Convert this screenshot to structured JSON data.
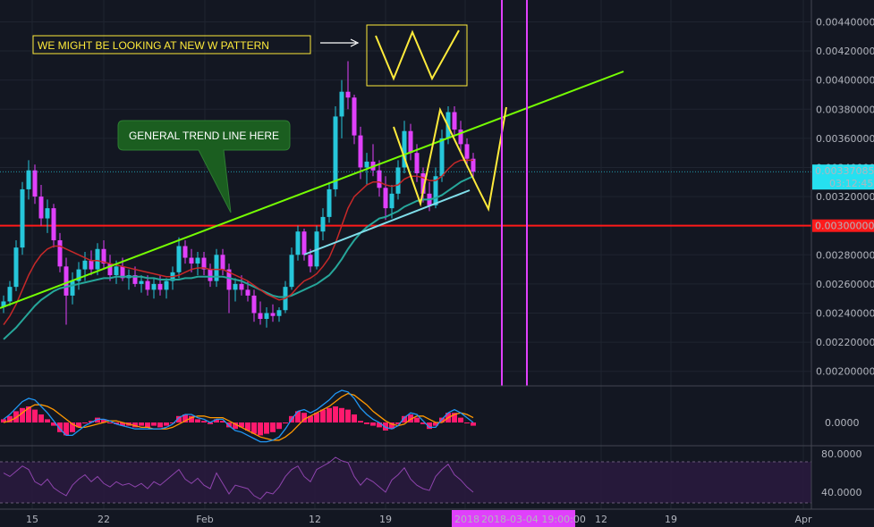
{
  "chart_data": {
    "type": "candlestick",
    "main": {
      "ylim": [
        0.0019,
        0.00455
      ],
      "yticks": [
        "0.00200000",
        "0.00220000",
        "0.00240000",
        "0.00260000",
        "0.00280000",
        "0.00300000",
        "0.00320000",
        "0.00340000",
        "0.00360000",
        "0.00380000",
        "0.00400000",
        "0.00420000",
        "0.00440000"
      ],
      "last_price": "0.00337085",
      "countdown": "03:12:45",
      "support_level": "0.00300000",
      "candles": [
        [
          0.00244,
          0.00252,
          0.0024,
          0.00248
        ],
        [
          0.00248,
          0.00262,
          0.00245,
          0.00258
        ],
        [
          0.00258,
          0.0029,
          0.00255,
          0.00285
        ],
        [
          0.00285,
          0.0033,
          0.0028,
          0.00325
        ],
        [
          0.00325,
          0.00345,
          0.00318,
          0.00338
        ],
        [
          0.00338,
          0.00342,
          0.00315,
          0.0032
        ],
        [
          0.0032,
          0.00328,
          0.003,
          0.00305
        ],
        [
          0.00305,
          0.00318,
          0.00295,
          0.00312
        ],
        [
          0.00312,
          0.00315,
          0.00285,
          0.0029
        ],
        [
          0.0029,
          0.00295,
          0.00268,
          0.00272
        ],
        [
          0.00272,
          0.00278,
          0.00232,
          0.00252
        ],
        [
          0.00252,
          0.00268,
          0.00246,
          0.00262
        ],
        [
          0.00262,
          0.00275,
          0.00256,
          0.0027
        ],
        [
          0.0027,
          0.00282,
          0.00262,
          0.00276
        ],
        [
          0.00276,
          0.00283,
          0.00266,
          0.0027
        ],
        [
          0.0027,
          0.00288,
          0.00266,
          0.00284
        ],
        [
          0.00284,
          0.0029,
          0.0027,
          0.00274
        ],
        [
          0.00274,
          0.0028,
          0.00262,
          0.00266
        ],
        [
          0.00266,
          0.00276,
          0.0026,
          0.00272
        ],
        [
          0.00272,
          0.00278,
          0.00262,
          0.00264
        ],
        [
          0.00264,
          0.0027,
          0.00256,
          0.00266
        ],
        [
          0.00266,
          0.00272,
          0.00258,
          0.0026
        ],
        [
          0.0026,
          0.00266,
          0.00254,
          0.00262
        ],
        [
          0.00262,
          0.00266,
          0.00252,
          0.00256
        ],
        [
          0.00256,
          0.00264,
          0.0025,
          0.0026
        ],
        [
          0.0026,
          0.00266,
          0.00252,
          0.00256
        ],
        [
          0.00256,
          0.00264,
          0.0025,
          0.00262
        ],
        [
          0.00262,
          0.00272,
          0.00256,
          0.00268
        ],
        [
          0.00268,
          0.00292,
          0.00264,
          0.00286
        ],
        [
          0.00286,
          0.0029,
          0.00274,
          0.00278
        ],
        [
          0.00278,
          0.00284,
          0.00268,
          0.00274
        ],
        [
          0.00274,
          0.00282,
          0.00266,
          0.00278
        ],
        [
          0.00278,
          0.00282,
          0.00266,
          0.0027
        ],
        [
          0.0027,
          0.00274,
          0.00258,
          0.00262
        ],
        [
          0.00262,
          0.00284,
          0.00258,
          0.0028
        ],
        [
          0.0028,
          0.00284,
          0.00266,
          0.0027
        ],
        [
          0.0027,
          0.00274,
          0.0024,
          0.00256
        ],
        [
          0.00256,
          0.00264,
          0.00248,
          0.0026
        ],
        [
          0.0026,
          0.00266,
          0.00252,
          0.00256
        ],
        [
          0.00256,
          0.00262,
          0.00248,
          0.00252
        ],
        [
          0.00252,
          0.00256,
          0.00234,
          0.0024
        ],
        [
          0.0024,
          0.00248,
          0.00232,
          0.00236
        ],
        [
          0.00236,
          0.00244,
          0.0023,
          0.0024
        ],
        [
          0.0024,
          0.00246,
          0.00234,
          0.00238
        ],
        [
          0.00238,
          0.00244,
          0.00234,
          0.00242
        ],
        [
          0.00242,
          0.00262,
          0.0024,
          0.00258
        ],
        [
          0.00258,
          0.00285,
          0.00256,
          0.0028
        ],
        [
          0.0028,
          0.003,
          0.00276,
          0.00296
        ],
        [
          0.00296,
          0.00298,
          0.00276,
          0.0028
        ],
        [
          0.0028,
          0.00284,
          0.00268,
          0.00272
        ],
        [
          0.00272,
          0.003,
          0.0027,
          0.00296
        ],
        [
          0.00296,
          0.00312,
          0.0029,
          0.00306
        ],
        [
          0.00306,
          0.0033,
          0.00302,
          0.00325
        ],
        [
          0.00325,
          0.00382,
          0.0032,
          0.00375
        ],
        [
          0.00375,
          0.004,
          0.0036,
          0.00392
        ],
        [
          0.00392,
          0.00413,
          0.0038,
          0.00388
        ],
        [
          0.00388,
          0.0039,
          0.00356,
          0.00362
        ],
        [
          0.00362,
          0.00368,
          0.00332,
          0.0034
        ],
        [
          0.0034,
          0.0035,
          0.00328,
          0.00344
        ],
        [
          0.00344,
          0.00356,
          0.00334,
          0.00338
        ],
        [
          0.00338,
          0.00345,
          0.0032,
          0.00326
        ],
        [
          0.00326,
          0.00334,
          0.00304,
          0.00312
        ],
        [
          0.00312,
          0.00328,
          0.00305,
          0.00322
        ],
        [
          0.00322,
          0.00345,
          0.00318,
          0.0034
        ],
        [
          0.0034,
          0.00372,
          0.00336,
          0.00365
        ],
        [
          0.00365,
          0.0037,
          0.00345,
          0.0035
        ],
        [
          0.0035,
          0.00356,
          0.0033,
          0.00336
        ],
        [
          0.00336,
          0.0034,
          0.00316,
          0.00322
        ],
        [
          0.00322,
          0.0033,
          0.0031,
          0.00314
        ],
        [
          0.00314,
          0.0034,
          0.00312,
          0.00334
        ],
        [
          0.00334,
          0.00366,
          0.0033,
          0.0036
        ],
        [
          0.0036,
          0.00382,
          0.00356,
          0.00378
        ],
        [
          0.00378,
          0.00382,
          0.00362,
          0.00366
        ],
        [
          0.00366,
          0.00372,
          0.0035,
          0.00356
        ],
        [
          0.00356,
          0.0036,
          0.0034,
          0.00346
        ],
        [
          0.00346,
          0.0035,
          0.00332,
          0.00337
        ]
      ],
      "ma_fast": [
        0.00232,
        0.00238,
        0.00246,
        0.00256,
        0.00266,
        0.00274,
        0.0028,
        0.00284,
        0.00286,
        0.00286,
        0.00284,
        0.00282,
        0.0028,
        0.00278,
        0.00276,
        0.00276,
        0.00275,
        0.00274,
        0.00273,
        0.00272,
        0.00271,
        0.0027,
        0.00269,
        0.00268,
        0.00267,
        0.00266,
        0.00265,
        0.00265,
        0.00266,
        0.00268,
        0.0027,
        0.00271,
        0.00271,
        0.0027,
        0.0027,
        0.0027,
        0.00268,
        0.00266,
        0.00264,
        0.00262,
        0.00259,
        0.00256,
        0.00253,
        0.00251,
        0.00249,
        0.0025,
        0.00253,
        0.00258,
        0.00262,
        0.00264,
        0.00267,
        0.00272,
        0.00278,
        0.00288,
        0.003,
        0.00312,
        0.0032,
        0.00324,
        0.00328,
        0.0033,
        0.0033,
        0.00328,
        0.00327,
        0.00328,
        0.00332,
        0.00334,
        0.00334,
        0.00333,
        0.00331,
        0.00331,
        0.00334,
        0.00339,
        0.00343,
        0.00345,
        0.00345,
        0.00345
      ],
      "ma_slow": [
        0.00222,
        0.00226,
        0.0023,
        0.00235,
        0.0024,
        0.00245,
        0.00249,
        0.00252,
        0.00255,
        0.00257,
        0.00258,
        0.00259,
        0.0026,
        0.00261,
        0.00262,
        0.00263,
        0.00264,
        0.00264,
        0.00265,
        0.00265,
        0.00265,
        0.00265,
        0.00265,
        0.00264,
        0.00264,
        0.00263,
        0.00263,
        0.00263,
        0.00263,
        0.00264,
        0.00264,
        0.00265,
        0.00265,
        0.00265,
        0.00265,
        0.00265,
        0.00264,
        0.00263,
        0.00262,
        0.0026,
        0.00258,
        0.00256,
        0.00254,
        0.00252,
        0.00251,
        0.00251,
        0.00252,
        0.00254,
        0.00256,
        0.00258,
        0.0026,
        0.00263,
        0.00266,
        0.00271,
        0.00277,
        0.00284,
        0.0029,
        0.00295,
        0.00299,
        0.00302,
        0.00305,
        0.00306,
        0.00308,
        0.0031,
        0.00313,
        0.00315,
        0.00317,
        0.00318,
        0.00318,
        0.00319,
        0.00321,
        0.00324,
        0.00327,
        0.0033,
        0.00332,
        0.00334
      ]
    },
    "macd": {
      "tick": "0.0000",
      "hist": [
        0.2,
        0.4,
        0.7,
        0.9,
        1.0,
        0.8,
        0.5,
        0.2,
        -0.2,
        -0.6,
        -0.8,
        -0.6,
        -0.3,
        0.0,
        0.1,
        0.3,
        0.2,
        0.0,
        -0.1,
        -0.2,
        -0.2,
        -0.3,
        -0.2,
        -0.3,
        -0.2,
        -0.3,
        -0.2,
        0.0,
        0.4,
        0.5,
        0.4,
        0.2,
        0.1,
        -0.1,
        0.2,
        0.1,
        -0.3,
        -0.4,
        -0.3,
        -0.5,
        -0.7,
        -0.8,
        -0.7,
        -0.6,
        -0.4,
        0.0,
        0.4,
        0.7,
        0.6,
        0.4,
        0.6,
        0.8,
        0.9,
        1.0,
        0.9,
        0.8,
        0.5,
        0.1,
        -0.1,
        -0.2,
        -0.3,
        -0.5,
        -0.4,
        -0.1,
        0.4,
        0.5,
        0.3,
        -0.1,
        -0.4,
        -0.2,
        0.3,
        0.6,
        0.6,
        0.3,
        0.0,
        -0.2
      ],
      "macd_line": [
        0.2,
        0.5,
        0.9,
        1.3,
        1.5,
        1.4,
        1.0,
        0.6,
        0.1,
        -0.4,
        -0.8,
        -0.8,
        -0.5,
        -0.2,
        0.0,
        0.2,
        0.2,
        0.1,
        -0.1,
        -0.2,
        -0.3,
        -0.4,
        -0.4,
        -0.4,
        -0.4,
        -0.4,
        -0.3,
        -0.1,
        0.3,
        0.5,
        0.5,
        0.3,
        0.2,
        0.0,
        0.2,
        0.2,
        -0.2,
        -0.5,
        -0.6,
        -0.8,
        -1.0,
        -1.2,
        -1.2,
        -1.1,
        -0.9,
        -0.4,
        0.2,
        0.7,
        0.8,
        0.6,
        0.8,
        1.1,
        1.4,
        1.8,
        2.0,
        1.9,
        1.5,
        0.9,
        0.5,
        0.2,
        0.0,
        -0.3,
        -0.4,
        -0.2,
        0.3,
        0.6,
        0.5,
        0.1,
        -0.3,
        -0.3,
        0.2,
        0.6,
        0.8,
        0.6,
        0.3,
        0.0
      ],
      "signal_line": [
        0.0,
        0.1,
        0.3,
        0.6,
        0.9,
        1.1,
        1.1,
        1.0,
        0.8,
        0.5,
        0.2,
        -0.1,
        -0.3,
        -0.3,
        -0.2,
        -0.1,
        0.0,
        0.1,
        0.1,
        0.0,
        -0.1,
        -0.2,
        -0.3,
        -0.3,
        -0.4,
        -0.4,
        -0.4,
        -0.3,
        -0.1,
        0.1,
        0.3,
        0.4,
        0.4,
        0.3,
        0.3,
        0.3,
        0.1,
        -0.1,
        -0.3,
        -0.5,
        -0.7,
        -0.9,
        -1.0,
        -1.1,
        -1.1,
        -0.9,
        -0.6,
        -0.2,
        0.2,
        0.4,
        0.6,
        0.8,
        1.0,
        1.3,
        1.6,
        1.8,
        1.7,
        1.4,
        1.1,
        0.7,
        0.4,
        0.1,
        -0.1,
        -0.2,
        -0.1,
        0.2,
        0.4,
        0.4,
        0.2,
        0.0,
        0.0,
        0.3,
        0.5,
        0.6,
        0.5,
        0.3
      ]
    },
    "rsi": {
      "ticks": [
        "80.0000",
        "40.0000"
      ],
      "values": [
        62,
        58,
        64,
        70,
        66,
        52,
        48,
        55,
        45,
        40,
        36,
        48,
        55,
        60,
        52,
        58,
        50,
        46,
        52,
        48,
        50,
        46,
        50,
        44,
        52,
        48,
        54,
        60,
        66,
        55,
        50,
        56,
        48,
        44,
        62,
        50,
        38,
        48,
        46,
        44,
        36,
        32,
        40,
        38,
        46,
        58,
        66,
        70,
        58,
        52,
        66,
        70,
        74,
        80,
        76,
        74,
        58,
        48,
        56,
        52,
        46,
        40,
        54,
        60,
        68,
        55,
        48,
        44,
        42,
        58,
        66,
        72,
        60,
        54,
        46,
        40
      ]
    },
    "x_ticks": [
      "15",
      "22",
      "Feb",
      "12",
      "19",
      "2018",
      "12",
      "19",
      "Apr"
    ],
    "cursor_time_label": "2018-03-04 19:00:00",
    "annotations": {
      "w_pattern": "WE MIGHT BE LOOKING AT NEW W PATTERN",
      "trend_line": "GENERAL TREND LINE HERE"
    }
  },
  "colors": {
    "background": "#131722",
    "grid": "#1f2430",
    "axis_text": "#b2b5be",
    "up_candle": "#26c6da",
    "down_candle": "#e040fb",
    "ma_fast": "#c62828",
    "ma_slow": "#26a69a",
    "support": "#ff1a1a",
    "trend_line": "#76ff03",
    "channel_line": "#80deea",
    "w_pattern": "#ffeb3b",
    "vertical_marker": "#e040fb",
    "macd_line": "#2196f3",
    "signal_line": "#ff9800",
    "macd_hist": "#ff1a6e",
    "rsi_line": "#8e44ad",
    "last_price_badge": "#26e0f0",
    "callout_bg": "#1b5e20"
  }
}
